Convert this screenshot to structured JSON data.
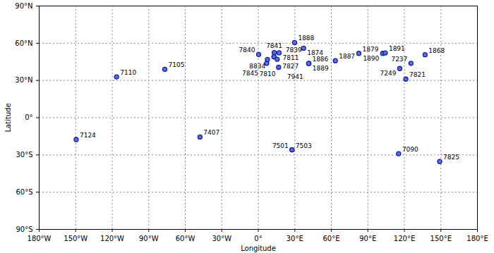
{
  "chart_data": {
    "type": "scatter",
    "xlabel": "Longitude",
    "ylabel": "Latitude",
    "labels": [
      "7124",
      "7110",
      "7105",
      "7407",
      "7840",
      "7841",
      "7811",
      "7827",
      "8834",
      "7810",
      "7845",
      "7839",
      "7941",
      "1888",
      "1874",
      "1889",
      "1886",
      "1887",
      "1879",
      "1890",
      "1891",
      "1868",
      "7237",
      "7249",
      "7821",
      "7503",
      "7501",
      "7090",
      "7825"
    ],
    "x": [
      -149.6,
      -116.4,
      -76.8,
      -47.9,
      0.3,
      13.1,
      17.1,
      12.9,
      12.9,
      7.5,
      6.9,
      15.5,
      16.7,
      29.8,
      37.2,
      41.6,
      41.4,
      63.3,
      82.6,
      102.2,
      104.3,
      137.0,
      125.4,
      116.2,
      121.2,
      27.7,
      27.7,
      115.3,
      149.0
    ],
    "values": [
      -17.6,
      32.9,
      39.0,
      -15.6,
      50.9,
      52.4,
      52.3,
      49.1,
      49.1,
      46.9,
      43.8,
      47.1,
      40.6,
      60.5,
      56.0,
      43.8,
      43.6,
      45.9,
      51.8,
      51.8,
      52.2,
      50.7,
      43.8,
      39.6,
      31.1,
      -25.9,
      -25.9,
      -29.0,
      -35.3
    ],
    "color": "#1a1aa6",
    "marker": "o",
    "grid": true,
    "xlim": [
      -180,
      180
    ],
    "xticks": [
      {
        "value": -180,
        "label": "180°W"
      },
      {
        "value": -150,
        "label": "150°W"
      },
      {
        "value": -120,
        "label": "120°W"
      },
      {
        "value": -90,
        "label": "90°W"
      },
      {
        "value": -60,
        "label": "60°W"
      },
      {
        "value": -30,
        "label": "30°W"
      },
      {
        "value": 0,
        "label": "0°"
      },
      {
        "value": 30,
        "label": "30°E"
      },
      {
        "value": 60,
        "label": "60°E"
      },
      {
        "value": 90,
        "label": "90°E"
      },
      {
        "value": 120,
        "label": "120°E"
      },
      {
        "value": 150,
        "label": "150°E"
      },
      {
        "value": 180,
        "label": "180°E"
      }
    ],
    "ylim": [
      -90,
      90
    ],
    "yticks": [
      {
        "value": -90,
        "label": "90°S"
      },
      {
        "value": -60,
        "label": "60°S"
      },
      {
        "value": -30,
        "label": "30°S"
      },
      {
        "value": 0,
        "label": "0°"
      },
      {
        "value": 30,
        "label": "30°N"
      },
      {
        "value": 60,
        "label": "60°N"
      },
      {
        "value": 90,
        "label": "90°N"
      }
    ]
  }
}
